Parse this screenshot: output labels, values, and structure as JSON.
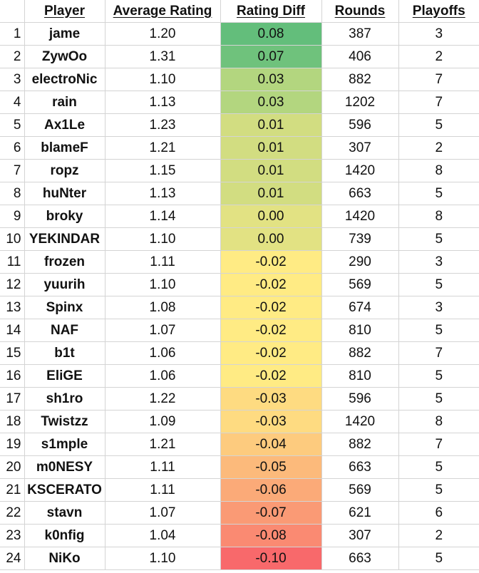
{
  "headers": {
    "index": "",
    "player": "Player",
    "average_rating": "Average Rating",
    "rating_diff": "Rating Diff",
    "rounds": "Rounds",
    "playoffs": "Playoffs"
  },
  "rows": [
    {
      "n": "1",
      "player": "jame",
      "avg": "1.20",
      "diff": "0.08",
      "rounds": "387",
      "playoffs": "3",
      "color": "#63be7b"
    },
    {
      "n": "2",
      "player": "ZywOo",
      "avg": "1.31",
      "diff": "0.07",
      "rounds": "406",
      "playoffs": "2",
      "color": "#6fc27c"
    },
    {
      "n": "3",
      "player": "electroNic",
      "avg": "1.10",
      "diff": "0.03",
      "rounds": "882",
      "playoffs": "7",
      "color": "#b3d67f"
    },
    {
      "n": "4",
      "player": "rain",
      "avg": "1.13",
      "diff": "0.03",
      "rounds": "1202",
      "playoffs": "7",
      "color": "#b3d67f"
    },
    {
      "n": "5",
      "player": "Ax1Le",
      "avg": "1.23",
      "diff": "0.01",
      "rounds": "596",
      "playoffs": "5",
      "color": "#d2dd81"
    },
    {
      "n": "6",
      "player": "blameF",
      "avg": "1.21",
      "diff": "0.01",
      "rounds": "307",
      "playoffs": "2",
      "color": "#d2dd81"
    },
    {
      "n": "7",
      "player": "ropz",
      "avg": "1.15",
      "diff": "0.01",
      "rounds": "1420",
      "playoffs": "8",
      "color": "#d2dd81"
    },
    {
      "n": "8",
      "player": "huNter",
      "avg": "1.13",
      "diff": "0.01",
      "rounds": "663",
      "playoffs": "5",
      "color": "#d2dd81"
    },
    {
      "n": "9",
      "player": "broky",
      "avg": "1.14",
      "diff": "0.00",
      "rounds": "1420",
      "playoffs": "8",
      "color": "#e2e283"
    },
    {
      "n": "10",
      "player": "YEKINDAR",
      "avg": "1.10",
      "diff": "0.00",
      "rounds": "739",
      "playoffs": "5",
      "color": "#e2e283"
    },
    {
      "n": "11",
      "player": "frozen",
      "avg": "1.11",
      "diff": "-0.02",
      "rounds": "290",
      "playoffs": "3",
      "color": "#ffeb84"
    },
    {
      "n": "12",
      "player": "yuurih",
      "avg": "1.10",
      "diff": "-0.02",
      "rounds": "569",
      "playoffs": "5",
      "color": "#ffeb84"
    },
    {
      "n": "13",
      "player": "Spinx",
      "avg": "1.08",
      "diff": "-0.02",
      "rounds": "674",
      "playoffs": "3",
      "color": "#ffeb84"
    },
    {
      "n": "14",
      "player": "NAF",
      "avg": "1.07",
      "diff": "-0.02",
      "rounds": "810",
      "playoffs": "5",
      "color": "#ffeb84"
    },
    {
      "n": "15",
      "player": "b1t",
      "avg": "1.06",
      "diff": "-0.02",
      "rounds": "882",
      "playoffs": "7",
      "color": "#ffeb84"
    },
    {
      "n": "16",
      "player": "EliGE",
      "avg": "1.06",
      "diff": "-0.02",
      "rounds": "810",
      "playoffs": "5",
      "color": "#ffeb84"
    },
    {
      "n": "17",
      "player": "sh1ro",
      "avg": "1.22",
      "diff": "-0.03",
      "rounds": "596",
      "playoffs": "5",
      "color": "#fedb81"
    },
    {
      "n": "18",
      "player": "Twistzz",
      "avg": "1.09",
      "diff": "-0.03",
      "rounds": "1420",
      "playoffs": "8",
      "color": "#fedb81"
    },
    {
      "n": "19",
      "player": "s1mple",
      "avg": "1.21",
      "diff": "-0.04",
      "rounds": "882",
      "playoffs": "7",
      "color": "#fdcb7e"
    },
    {
      "n": "20",
      "player": "m0NESY",
      "avg": "1.11",
      "diff": "-0.05",
      "rounds": "663",
      "playoffs": "5",
      "color": "#fcba7b"
    },
    {
      "n": "21",
      "player": "KSCERATO",
      "avg": "1.11",
      "diff": "-0.06",
      "rounds": "569",
      "playoffs": "5",
      "color": "#fbaa78"
    },
    {
      "n": "22",
      "player": "stavn",
      "avg": "1.07",
      "diff": "-0.07",
      "rounds": "621",
      "playoffs": "6",
      "color": "#fa9a75"
    },
    {
      "n": "23",
      "player": "k0nfig",
      "avg": "1.04",
      "diff": "-0.08",
      "rounds": "307",
      "playoffs": "2",
      "color": "#fa8a72"
    },
    {
      "n": "24",
      "player": "NiKo",
      "avg": "1.10",
      "diff": "-0.10",
      "rounds": "663",
      "playoffs": "5",
      "color": "#f8696b"
    }
  ]
}
